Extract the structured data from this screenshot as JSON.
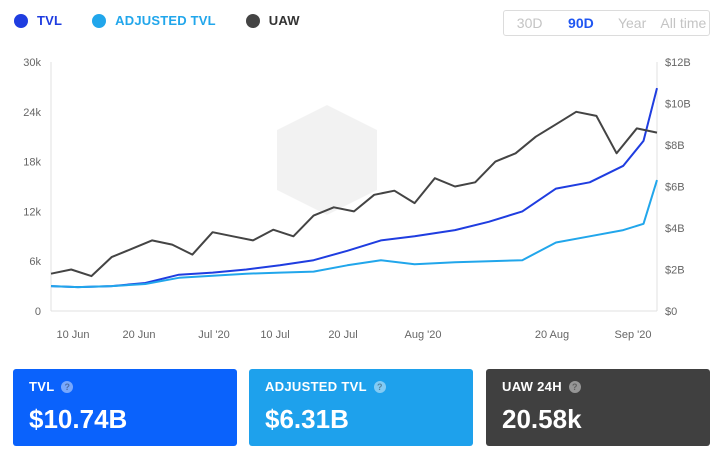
{
  "legend": [
    {
      "label": "TVL",
      "color": "#1f3de0"
    },
    {
      "label": "ADJUSTED TVL",
      "color": "#21a6eb"
    },
    {
      "label": "UAW",
      "color": "#444444"
    }
  ],
  "range_buttons": [
    {
      "label": "30D",
      "active": false
    },
    {
      "label": "90D",
      "active": true
    },
    {
      "label": "Year",
      "active": false
    },
    {
      "label": "All time",
      "active": false
    }
  ],
  "chart_data": {
    "type": "line",
    "x_ticks": [
      "10 Jun",
      "20 Jun",
      "Jul '20",
      "10 Jul",
      "20 Jul",
      "Aug '20",
      "20 Aug",
      "Sep '20"
    ],
    "x_range": [
      "2020-06-06",
      "2020-09-04"
    ],
    "y_left": {
      "range": [
        0,
        30000
      ],
      "ticks": [
        "0",
        "6k",
        "12k",
        "18k",
        "24k",
        "30k"
      ]
    },
    "y_right": {
      "range": [
        0,
        12
      ],
      "unit": "B",
      "ticks": [
        "$0",
        "$2B",
        "$4B",
        "$6B",
        "$8B",
        "$10B",
        "$12B"
      ]
    },
    "grid": false,
    "series": [
      {
        "name": "TVL",
        "axis": "right",
        "color": "#1f3de0",
        "x": [
          "2020-06-06",
          "2020-06-10",
          "2020-06-15",
          "2020-06-20",
          "2020-06-25",
          "2020-06-30",
          "2020-07-05",
          "2020-07-10",
          "2020-07-15",
          "2020-07-20",
          "2020-07-25",
          "2020-07-30",
          "2020-08-05",
          "2020-08-10",
          "2020-08-15",
          "2020-08-20",
          "2020-08-25",
          "2020-08-30",
          "2020-09-02",
          "2020-09-04"
        ],
        "values": [
          1.2,
          1.15,
          1.2,
          1.35,
          1.75,
          1.85,
          2.0,
          2.2,
          2.45,
          2.9,
          3.4,
          3.6,
          3.9,
          4.3,
          4.8,
          5.9,
          6.2,
          7.0,
          8.2,
          10.74
        ]
      },
      {
        "name": "ADJUSTED TVL",
        "axis": "right",
        "color": "#21a6eb",
        "x": [
          "2020-06-06",
          "2020-06-10",
          "2020-06-15",
          "2020-06-20",
          "2020-06-25",
          "2020-06-30",
          "2020-07-05",
          "2020-07-10",
          "2020-07-15",
          "2020-07-20",
          "2020-07-25",
          "2020-07-30",
          "2020-08-05",
          "2020-08-10",
          "2020-08-15",
          "2020-08-20",
          "2020-08-25",
          "2020-08-30",
          "2020-09-02",
          "2020-09-04"
        ],
        "values": [
          1.2,
          1.15,
          1.2,
          1.3,
          1.6,
          1.7,
          1.8,
          1.85,
          1.9,
          2.2,
          2.45,
          2.25,
          2.35,
          2.4,
          2.45,
          3.3,
          3.6,
          3.9,
          4.2,
          6.31
        ]
      },
      {
        "name": "UAW",
        "axis": "left",
        "color": "#444444",
        "x": [
          "2020-06-06",
          "2020-06-09",
          "2020-06-12",
          "2020-06-15",
          "2020-06-18",
          "2020-06-21",
          "2020-06-24",
          "2020-06-27",
          "2020-06-30",
          "2020-07-03",
          "2020-07-06",
          "2020-07-09",
          "2020-07-12",
          "2020-07-15",
          "2020-07-18",
          "2020-07-21",
          "2020-07-24",
          "2020-07-27",
          "2020-07-30",
          "2020-08-02",
          "2020-08-05",
          "2020-08-08",
          "2020-08-11",
          "2020-08-14",
          "2020-08-17",
          "2020-08-20",
          "2020-08-23",
          "2020-08-26",
          "2020-08-29",
          "2020-09-01",
          "2020-09-04"
        ],
        "values": [
          4500,
          5000,
          4200,
          6500,
          7500,
          8500,
          8000,
          6800,
          9500,
          9000,
          8500,
          9800,
          9000,
          11500,
          12500,
          12000,
          14000,
          14500,
          13000,
          16000,
          15000,
          15500,
          18000,
          19000,
          21000,
          22500,
          24000,
          23500,
          19000,
          22000,
          21500
        ]
      }
    ]
  },
  "cards": [
    {
      "title": "TVL",
      "value": "$10.74B",
      "color": "#0a62fc"
    },
    {
      "title": "ADJUSTED TVL",
      "value": "$6.31B",
      "color": "#1ea1ec"
    },
    {
      "title": "UAW 24H",
      "value": "20.58k",
      "color": "#404040"
    }
  ]
}
